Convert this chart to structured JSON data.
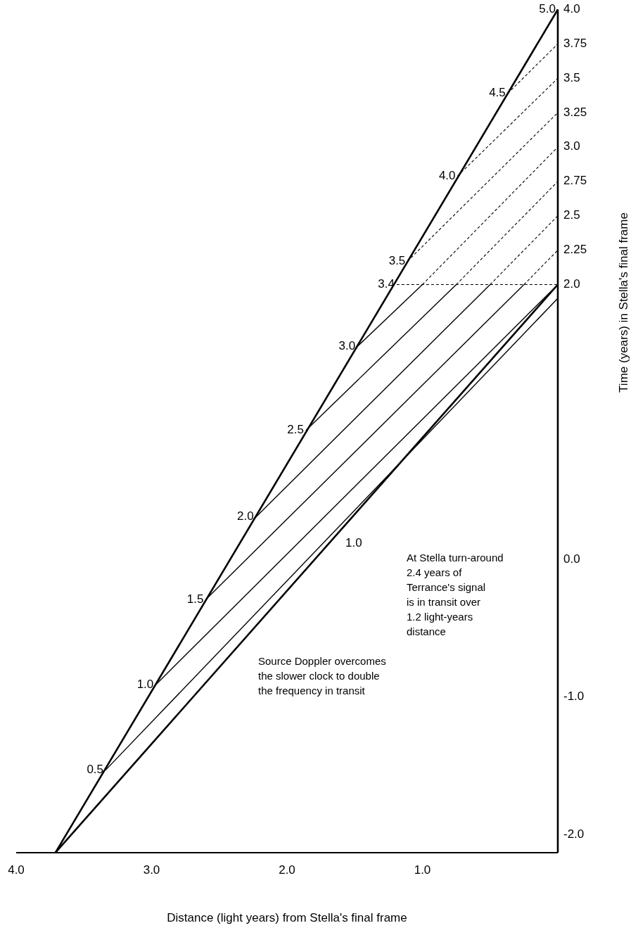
{
  "chart_data": {
    "type": "line",
    "xlabel": "Distance (light years) from Stella's final frame",
    "ylabel": "Time (years) in Stella's final frame",
    "xlim": [
      4.0,
      0
    ],
    "ylim": [
      -2.13,
      4.0
    ],
    "xticks": [
      {
        "value": 4,
        "label": "4.0"
      },
      {
        "value": 3,
        "label": "3.0"
      },
      {
        "value": 2,
        "label": "2.0"
      },
      {
        "value": 1,
        "label": "1.0"
      }
    ],
    "yticks": [
      {
        "value": 4,
        "label": "4.0"
      },
      3.75,
      3.5,
      3.25,
      {
        "value": 3,
        "label": "3.0"
      },
      2.75,
      2.5,
      2.25,
      {
        "value": 2,
        "label": "2.0"
      },
      {
        "value": 0,
        "label": "0.0"
      },
      {
        "value": -1,
        "label": "-1.0"
      },
      {
        "value": -2,
        "label": "-2.0"
      }
    ],
    "marker": "none",
    "series": [
      {
        "color": "#000000",
        "line_style": "solid",
        "x": [
          3.71,
          0
        ],
        "values": [
          -2.13,
          4.0
        ]
      },
      {
        "color": "#000000",
        "line_style": "solid",
        "x": [
          3.71,
          0
        ],
        "values": [
          -2.13,
          2.0
        ]
      },
      {
        "color": "#000000",
        "line_style": "solid",
        "x": [
          3.34,
          0
        ],
        "values": [
          -1.53,
          1.9
        ]
      },
      {
        "color": "#000000",
        "line_style": "solid",
        "x": [
          2.97,
          0
        ],
        "values": [
          -0.91,
          2.0
        ]
      },
      {
        "color": "#000000",
        "line_style": "solid",
        "x": [
          2.6,
          0.25
        ],
        "values": [
          -0.29,
          2.0
        ]
      },
      {
        "color": "#000000",
        "line_style": "dashed",
        "x": [
          0.25,
          0
        ],
        "values": [
          2.0,
          2.25
        ]
      },
      {
        "color": "#000000",
        "line_style": "solid",
        "x": [
          2.23,
          0.5
        ],
        "values": [
          0.31,
          2.0
        ]
      },
      {
        "color": "#000000",
        "line_style": "dashed",
        "x": [
          0.5,
          0
        ],
        "values": [
          2.0,
          2.5
        ]
      },
      {
        "color": "#000000",
        "line_style": "solid",
        "x": [
          1.86,
          0.75
        ],
        "values": [
          0.94,
          2.0
        ]
      },
      {
        "color": "#000000",
        "line_style": "dashed",
        "x": [
          0.75,
          0
        ],
        "values": [
          2.0,
          2.75
        ]
      },
      {
        "color": "#000000",
        "line_style": "solid",
        "x": [
          1.48,
          1.0
        ],
        "values": [
          1.55,
          2.0
        ]
      },
      {
        "color": "#000000",
        "line_style": "dashed",
        "x": [
          1.0,
          0
        ],
        "values": [
          2.0,
          3.0
        ]
      },
      {
        "color": "#000000",
        "line_style": "dashed",
        "x": [
          1.11,
          0
        ],
        "values": [
          2.17,
          3.25
        ]
      },
      {
        "color": "#000000",
        "line_style": "dashed",
        "x": [
          0.74,
          0
        ],
        "values": [
          2.79,
          3.5
        ]
      },
      {
        "color": "#000000",
        "line_style": "dashed",
        "x": [
          0.37,
          0
        ],
        "values": [
          3.39,
          3.75
        ]
      },
      {
        "color": "#000000",
        "line_style": "dashed",
        "x": [
          1.19,
          0
        ],
        "values": [
          2.0,
          2.0
        ]
      }
    ],
    "annotations": [
      {
        "text": "0.5",
        "x": 3.34,
        "y": -1.53
      },
      {
        "text": "1.0",
        "x": 2.97,
        "y": -0.91
      },
      {
        "text": "1.5",
        "x": 2.6,
        "y": -0.29
      },
      {
        "text": "2.0",
        "x": 2.23,
        "y": 0.31
      },
      {
        "text": "2.5",
        "x": 1.86,
        "y": 0.94
      },
      {
        "text": "3.0",
        "x": 1.48,
        "y": 1.55
      },
      {
        "text": "3.4",
        "x": 1.19,
        "y": 2.0
      },
      {
        "text": "3.5",
        "x": 1.11,
        "y": 2.17
      },
      {
        "text": "4.0",
        "x": 0.74,
        "y": 2.79
      },
      {
        "text": "4.5",
        "x": 0.37,
        "y": 3.39
      },
      {
        "text": "5.0",
        "x": 0,
        "y": 4.0
      },
      {
        "text": "1.0",
        "x": 1.6,
        "y": 0.19
      },
      "At Stella turn-around\n2.4 years of\nTerrance's signal\nis in transit over\n1.2 light-years\ndistance",
      "Source Doppler overcomes\nthe slower clock to double\nthe frequency in transit"
    ]
  }
}
